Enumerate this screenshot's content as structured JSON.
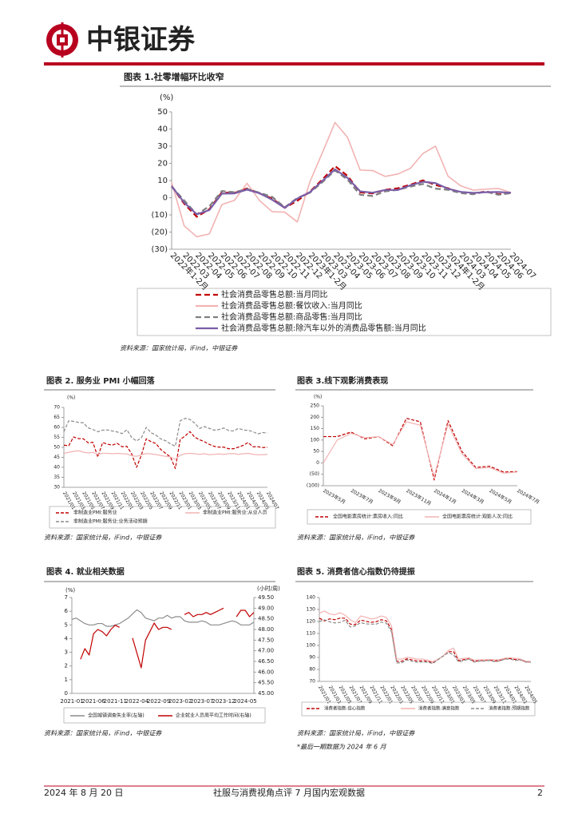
{
  "header": {
    "brand": "中银证券"
  },
  "footer": {
    "date": "2024 年 8 月 20 日",
    "title": "社服与消费视角点评 7 月国内宏观数据",
    "page": 2
  },
  "chart_data": [
    {
      "type": "line",
      "title": "图表 1.社零增幅环比收窄",
      "y_unit": "(%)",
      "categories": [
        "2022年1-2月",
        "2022-03",
        "2022-04",
        "2022-05",
        "2022-06",
        "2022-07",
        "2022-08",
        "2022-09",
        "2022-10",
        "2022-11",
        "2022-12",
        "2023年1-2月",
        "2023-03",
        "2023-04",
        "2023-05",
        "2023-06",
        "2023-07",
        "2023-08",
        "2023-09",
        "2023-10",
        "2023-11",
        "2023-12",
        "2024年1-2月",
        "2024-03",
        "2024-04",
        "2024-05",
        "2024-06",
        "2024-07"
      ],
      "ylim": [
        -30,
        50
      ],
      "yticks": [
        {
          "value": -30,
          "label": "(30)"
        },
        {
          "value": -20,
          "label": "(20)"
        },
        {
          "value": -10,
          "label": "(10)"
        },
        0,
        10,
        20,
        30,
        40,
        50
      ],
      "grid": false,
      "series": [
        {
          "name": "社会消费品零售总额:当月同比",
          "color": "#c00000",
          "line_style": "dashed",
          "values": [
            6.7,
            -3.5,
            -11.1,
            -6.7,
            3.1,
            2.7,
            5.4,
            2.5,
            -0.5,
            -5.9,
            -1.8,
            3.5,
            10.6,
            18.4,
            12.7,
            3.1,
            2.5,
            4.6,
            5.5,
            7.6,
            10.1,
            7.4,
            5.5,
            3.1,
            2.3,
            3.7,
            2.0,
            2.7
          ]
        },
        {
          "name": "社会消费品零售总额:餐饮收入:当月同比",
          "color": "#f2b3b3",
          "line_style": "solid",
          "values": [
            8.9,
            -16.4,
            -22.7,
            -21.1,
            -4.0,
            -1.5,
            8.4,
            -1.7,
            -8.1,
            -8.4,
            -14.1,
            9.2,
            26.3,
            43.8,
            35.1,
            16.1,
            15.8,
            12.4,
            13.8,
            17.1,
            25.8,
            30.0,
            12.5,
            6.9,
            4.4,
            5.0,
            5.4,
            3.0
          ]
        },
        {
          "name": "社会消费品零售总额:商品零售:当月同比",
          "color": "#7f7f7f",
          "line_style": "dashed",
          "values": [
            6.5,
            -1.6,
            -9.7,
            -5.0,
            3.9,
            3.2,
            5.1,
            2.9,
            0.5,
            -5.6,
            -0.1,
            2.9,
            9.1,
            15.9,
            10.5,
            1.7,
            1.0,
            3.7,
            4.6,
            6.5,
            8.0,
            5.3,
            4.6,
            2.7,
            2.0,
            3.6,
            1.7,
            2.7
          ]
        },
        {
          "name": "社会消费品零售总额:除汽车以外的消费品零售额:当月同比",
          "color": "#7b5ea7",
          "line_style": "solid",
          "values": [
            6.7,
            -2.8,
            -9.7,
            -7.2,
            2.4,
            2.5,
            4.7,
            2.6,
            -1.2,
            -5.9,
            -0.5,
            3.2,
            9.8,
            16.5,
            11.5,
            3.7,
            2.9,
            4.5,
            4.5,
            7.2,
            9.3,
            8.5,
            5.2,
            3.4,
            2.8,
            3.2,
            3.3,
            2.9
          ]
        }
      ],
      "source": "资料来源：国家统计局，iFind，中银证券"
    },
    {
      "type": "line",
      "title": "图表 2. 服务业 PMI 小幅回落",
      "y_unit": "(%)",
      "categories": [
        "2021/01",
        null,
        "2021/03",
        null,
        "2021/05",
        null,
        "2021/07",
        null,
        "2021/09",
        null,
        "2021/11",
        null,
        "2022/01",
        null,
        "2022/03",
        null,
        "2022/05",
        null,
        "2022/07",
        null,
        "2022/09",
        null,
        "2022/11",
        null,
        "2023/01",
        null,
        "2023/03",
        null,
        "2023/05",
        null,
        "2023/07",
        null,
        "2023/09",
        null,
        "2023/11",
        null,
        "2024/01",
        null,
        "2024/03",
        null,
        "2024/05",
        null,
        "2024/07"
      ],
      "ylim": [
        30,
        70
      ],
      "yticks": [
        30,
        35,
        40,
        45,
        50,
        55,
        60,
        65,
        70
      ],
      "grid": false,
      "series": [
        {
          "name": "非制造业PMI:服务业",
          "color": "#c00000",
          "line_style": "dashed",
          "values": [
            51.1,
            50.8,
            55.2,
            54.4,
            54.3,
            52.3,
            52.5,
            45.2,
            52.4,
            51.6,
            51.1,
            52.0,
            50.3,
            50.5,
            46.7,
            40.0,
            46.1,
            54.3,
            52.8,
            51.9,
            48.9,
            47.0,
            45.1,
            39.4,
            54.0,
            55.6,
            57.9,
            55.1,
            53.8,
            52.8,
            51.5,
            50.5,
            50.1,
            50.1,
            49.3,
            49.3,
            50.1,
            51.0,
            52.4,
            50.3,
            50.3,
            49.9,
            50.0
          ]
        },
        {
          "name": "非制造业PMI:服务业:从业人员",
          "color": "#f2b3b3",
          "line_style": "solid",
          "values": [
            47.0,
            47.5,
            48.0,
            48.3,
            47.6,
            47.2,
            47.5,
            46.5,
            47.0,
            47.0,
            46.8,
            47.0,
            46.8,
            46.7,
            45.8,
            45.5,
            46.3,
            46.9,
            46.7,
            46.4,
            45.9,
            45.5,
            45.2,
            44.0,
            46.0,
            46.8,
            47.0,
            46.8,
            46.5,
            46.8,
            46.3,
            46.5,
            46.7,
            46.5,
            46.8,
            46.9,
            46.5,
            46.8,
            47.0,
            46.5,
            46.3,
            46.3,
            46.5
          ]
        },
        {
          "name": "非制造业PMI:服务业:业务活动预期",
          "color": "#8c8c8c",
          "line_style": "dashed",
          "values": [
            57.8,
            63.3,
            63.0,
            62.5,
            62.3,
            59.8,
            58.9,
            57.8,
            58.6,
            58.7,
            58.2,
            57.7,
            56.9,
            58.8,
            54.9,
            53.2,
            54.8,
            60.0,
            57.3,
            56.1,
            54.2,
            53.3,
            51.7,
            50.6,
            63.3,
            64.5,
            64.0,
            62.1,
            59.5,
            60.4,
            59.5,
            58.6,
            58.9,
            59.7,
            58.4,
            58.2,
            59.5,
            58.7,
            58.5,
            57.9,
            56.7,
            57.4,
            57.2
          ]
        }
      ],
      "source": "资料来源：国家统计局，iFind，中银证券"
    },
    {
      "type": "line",
      "title": "图表 3.线下观影消费表现",
      "y_unit": "(%)",
      "categories": [
        "2023年5月",
        null,
        "2023年7月",
        null,
        "2023年9月",
        null,
        "2023年11月",
        null,
        "2024年1月",
        null,
        "2024年3月",
        null,
        "2024年5月",
        null,
        "2024年7月"
      ],
      "ylim": [
        -100,
        250
      ],
      "yticks": [
        {
          "value": -100,
          "label": "(100)"
        },
        {
          "value": -50,
          "label": "(50)"
        },
        0,
        50,
        100,
        150,
        200,
        250
      ],
      "grid": false,
      "series": [
        {
          "name": "全国电影票房统计:票房收入:同比",
          "color": "#c00000",
          "line_style": "dashed",
          "values": [
            115,
            115,
            135,
            105,
            115,
            75,
            195,
            180,
            -75,
            185,
            50,
            -20,
            -15,
            -40,
            -38
          ]
        },
        {
          "name": "全国电影票房统计:观影人次:同比",
          "color": "#f2b3b3",
          "line_style": "solid",
          "values": [
            0,
            100,
            130,
            110,
            115,
            80,
            180,
            165,
            -60,
            170,
            40,
            -25,
            -20,
            -45,
            -40
          ]
        }
      ],
      "source": "资料来源：国家统计局，iFind，中银证券"
    },
    {
      "type": "line",
      "title": "图表 4. 就业相关数据",
      "y_unit": "(%)",
      "y2_unit": "(小时/周)",
      "categories": [
        "2021-01",
        null,
        null,
        null,
        null,
        "2021-06",
        null,
        null,
        null,
        null,
        "2021-11",
        null,
        null,
        null,
        null,
        "2022-04",
        null,
        null,
        null,
        null,
        "2022-09",
        null,
        null,
        null,
        null,
        "2023-02",
        null,
        null,
        null,
        null,
        "2023-07",
        null,
        null,
        null,
        null,
        "2023-12",
        null,
        null,
        null,
        null,
        "2024-05",
        null,
        null
      ],
      "ylim": [
        0,
        7
      ],
      "yticks": [
        0,
        1,
        2,
        3,
        4,
        5,
        6,
        7
      ],
      "y2lim": [
        45,
        49.5
      ],
      "y2ticks": [
        {
          "value": 45,
          "label": "45.00"
        },
        {
          "value": 45.5,
          "label": "45.50"
        },
        {
          "value": 46,
          "label": "46.00"
        },
        {
          "value": 46.5,
          "label": "46.50"
        },
        {
          "value": 47,
          "label": "47.00"
        },
        {
          "value": 47.5,
          "label": "47.50"
        },
        {
          "value": 48,
          "label": "48.00"
        },
        {
          "value": 48.5,
          "label": "48.50"
        },
        {
          "value": 49,
          "label": "49.00"
        },
        {
          "value": 49.5,
          "label": "49.50"
        }
      ],
      "grid": false,
      "series": [
        {
          "name": "全国城镇调查失业率(左轴)",
          "color": "#8c8c8c",
          "line_style": "solid",
          "values": [
            5.4,
            5.5,
            5.3,
            5.1,
            5.0,
            5.0,
            5.1,
            5.1,
            4.9,
            4.9,
            5.0,
            5.1,
            5.3,
            5.5,
            5.8,
            6.1,
            5.9,
            5.5,
            5.4,
            5.3,
            5.5,
            5.5,
            5.7,
            5.5,
            5.6,
            5.6,
            5.3,
            5.2,
            5.2,
            5.2,
            5.3,
            5.2,
            5.0,
            5.0,
            5.0,
            5.1,
            5.2,
            5.3,
            5.2,
            5.0,
            5.0,
            5.0,
            5.2
          ]
        },
        {
          "name": "企业就业人员周平均工作时间(右轴)",
          "color": "#c00000",
          "line_style": "solid",
          "axis": "y2",
          "values": [
            null,
            null,
            46.6,
            47.1,
            46.8,
            47.8,
            48.0,
            47.9,
            47.7,
            48.0,
            48.2,
            48.1,
            null,
            null,
            47.6,
            46.9,
            46.2,
            47.5,
            47.9,
            48.3,
            48.0,
            48.1,
            48.1,
            48.0,
            null,
            null,
            48.7,
            48.8,
            48.6,
            48.7,
            48.7,
            48.8,
            48.7,
            48.8,
            48.9,
            49.0,
            null,
            null,
            48.6,
            48.9,
            48.9,
            48.6,
            48.8
          ]
        }
      ],
      "source": "资料来源：国家统计局，iFind，中银证券"
    },
    {
      "type": "line",
      "title": "图表 5. 消费者信心指数仍待提振",
      "categories": [
        "2021/01",
        null,
        "2021/03",
        null,
        "2021/05",
        null,
        "2021/07",
        null,
        "2021/09",
        null,
        "2021/11",
        null,
        "2022/01",
        null,
        "2022/03",
        null,
        "2022/05",
        null,
        "2022/07",
        null,
        "2022/09",
        null,
        "2022/11",
        null,
        "2023/01",
        null,
        "2023/03",
        null,
        "2023/05",
        null,
        "2023/07",
        null,
        "2023/09",
        null,
        "2023/11",
        null,
        "2024/01",
        null,
        "2024/03",
        null,
        "2024/05",
        null
      ],
      "ylim": [
        70,
        140
      ],
      "yticks": [
        70,
        80,
        90,
        100,
        110,
        120,
        130,
        140
      ],
      "grid": false,
      "series": [
        {
          "name": "消费者指数:信心指数",
          "color": "#c00000",
          "line_style": "dashed",
          "values": [
            122.8,
            120.5,
            122.2,
            121.5,
            122.8,
            122.8,
            117.8,
            117.5,
            121.2,
            120.2,
            119.3,
            119.8,
            121.5,
            120.5,
            113.2,
            86.7,
            86.8,
            88.9,
            87.9,
            87.0,
            87.2,
            86.8,
            85.5,
            88.3,
            91.2,
            94.7,
            94.9,
            87.1,
            88.2,
            89.0,
            86.7,
            87.4,
            87.4,
            87.8,
            87.0,
            87.6,
            88.9,
            89.1,
            88.2,
            88.2,
            86.4,
            86.2
          ]
        },
        {
          "name": "消费者指数:满意指数",
          "color": "#f2b3b3",
          "line_style": "solid",
          "values": [
            126.9,
            128.7,
            126.3,
            125.6,
            127.3,
            125.3,
            121.4,
            119.1,
            124.6,
            123.6,
            122.1,
            122.8,
            124.6,
            123.4,
            116.2,
            88.7,
            88.6,
            90.1,
            89.5,
            88.5,
            88.7,
            87.8,
            86.4,
            88.6,
            91.2,
            95.8,
            97.8,
            88.5,
            89.3,
            89.6,
            87.7,
            88.0,
            88.0,
            88.3,
            87.9,
            88.3,
            89.4,
            89.8,
            89.2,
            88.6,
            86.9,
            86.5
          ]
        },
        {
          "name": "消费者指数:预期指数",
          "color": "#8c8c8c",
          "line_style": "dashed",
          "values": [
            120.0,
            121.4,
            119.7,
            118.8,
            119.2,
            121.1,
            115.4,
            116.4,
            119.0,
            118.0,
            117.8,
            117.8,
            119.5,
            118.6,
            111.2,
            85.4,
            85.6,
            88.0,
            86.8,
            86.0,
            86.2,
            86.1,
            84.9,
            88.1,
            91.1,
            94.0,
            92.3,
            86.2,
            87.5,
            88.6,
            86.1,
            87.0,
            87.0,
            87.5,
            86.4,
            87.1,
            88.6,
            88.6,
            87.5,
            87.9,
            86.1,
            86.0
          ]
        }
      ],
      "source": "资料来源：国家统计局，iFind，中银证券",
      "note": "*最后一期数据为 2024 年 6 月"
    }
  ]
}
